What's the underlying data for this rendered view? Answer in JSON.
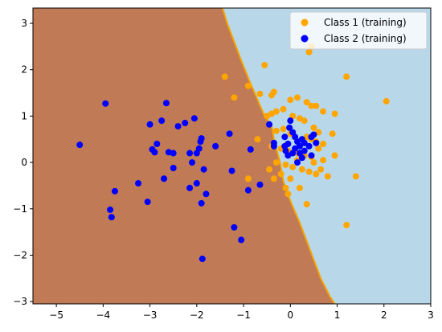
{
  "chart_data": {
    "type": "scatter",
    "title": "",
    "xlabel": "",
    "ylabel": "",
    "xlim": [
      -5.5,
      3.0
    ],
    "ylim": [
      -3.05,
      3.33
    ],
    "xticks": [
      -5,
      -4,
      -3,
      -2,
      -1,
      0,
      1,
      2,
      3
    ],
    "yticks": [
      -3,
      -2,
      -1,
      0,
      1,
      2,
      3
    ],
    "grid": false,
    "legend_position": "top-right",
    "decision_regions": {
      "class1_color": "#C07A56",
      "class2_color": "#B8D8EA",
      "boundary_color": "#F4A300",
      "boundary": [
        [
          -1.45,
          3.33
        ],
        [
          -1.35,
          3.0
        ],
        [
          -1.2,
          2.6
        ],
        [
          -1.05,
          2.2
        ],
        [
          -0.95,
          1.95
        ],
        [
          -0.85,
          1.7
        ],
        [
          -0.7,
          1.35
        ],
        [
          -0.55,
          1.0
        ],
        [
          -0.4,
          0.8
        ],
        [
          -0.35,
          0.5
        ],
        [
          -0.3,
          0.3
        ],
        [
          -0.22,
          0.0
        ],
        [
          -0.15,
          -0.4
        ],
        [
          -0.05,
          -0.7
        ],
        [
          0.05,
          -0.95
        ],
        [
          0.2,
          -1.3
        ],
        [
          0.35,
          -1.7
        ],
        [
          0.5,
          -2.1
        ],
        [
          0.65,
          -2.5
        ],
        [
          0.85,
          -2.9
        ],
        [
          0.95,
          -3.05
        ]
      ]
    },
    "series": [
      {
        "name": "Class 1 (training)",
        "color": "#FFA500",
        "points": [
          [
            -1.4,
            1.85
          ],
          [
            -1.2,
            1.4
          ],
          [
            -0.55,
            2.1
          ],
          [
            0.4,
            2.38
          ],
          [
            0.45,
            2.5
          ],
          [
            1.2,
            1.85
          ],
          [
            2.05,
            1.32
          ],
          [
            -0.9,
            1.65
          ],
          [
            -0.65,
            1.48
          ],
          [
            -0.4,
            1.45
          ],
          [
            -0.35,
            1.52
          ],
          [
            0.0,
            1.35
          ],
          [
            0.15,
            1.4
          ],
          [
            0.35,
            1.3
          ],
          [
            0.45,
            1.22
          ],
          [
            0.55,
            1.22
          ],
          [
            0.7,
            1.1
          ],
          [
            0.95,
            1.05
          ],
          [
            -0.5,
            1.0
          ],
          [
            -0.4,
            1.05
          ],
          [
            -0.3,
            1.1
          ],
          [
            -0.15,
            1.15
          ],
          [
            0.05,
            1.0
          ],
          [
            0.2,
            0.95
          ],
          [
            0.3,
            0.9
          ],
          [
            0.5,
            0.75
          ],
          [
            0.6,
            0.65
          ],
          [
            0.9,
            0.62
          ],
          [
            -0.3,
            0.68
          ],
          [
            -0.15,
            0.72
          ],
          [
            0.0,
            0.62
          ],
          [
            0.1,
            0.55
          ],
          [
            0.35,
            0.55
          ],
          [
            0.45,
            0.5
          ],
          [
            0.55,
            0.45
          ],
          [
            0.7,
            0.4
          ],
          [
            -0.4,
            0.35
          ],
          [
            -0.2,
            0.3
          ],
          [
            -0.05,
            0.25
          ],
          [
            0.15,
            0.2
          ],
          [
            0.3,
            0.15
          ],
          [
            0.45,
            0.12
          ],
          [
            0.6,
            0.3
          ],
          [
            0.7,
            0.05
          ],
          [
            0.95,
            0.15
          ],
          [
            -0.3,
            0.0
          ],
          [
            -0.1,
            -0.05
          ],
          [
            0.05,
            -0.1
          ],
          [
            0.25,
            -0.15
          ],
          [
            0.4,
            -0.2
          ],
          [
            0.55,
            -0.25
          ],
          [
            0.8,
            -0.3
          ],
          [
            -0.45,
            -0.15
          ],
          [
            -0.2,
            -0.25
          ],
          [
            0.0,
            -0.35
          ],
          [
            0.2,
            -0.55
          ],
          [
            -0.35,
            -0.35
          ],
          [
            -0.9,
            -0.35
          ],
          [
            -0.7,
            0.5
          ],
          [
            -0.1,
            -0.55
          ],
          [
            -0.05,
            -0.68
          ],
          [
            0.35,
            -0.9
          ],
          [
            1.4,
            -0.3
          ],
          [
            1.2,
            -1.35
          ],
          [
            0.65,
            -0.15
          ],
          [
            0.5,
            0.0
          ],
          [
            0.15,
            0.05
          ]
        ]
      },
      {
        "name": "Class 2 (training)",
        "color": "#0000FF",
        "points": [
          [
            -4.5,
            0.38
          ],
          [
            -3.95,
            1.27
          ],
          [
            -3.85,
            -1.02
          ],
          [
            -3.82,
            -1.18
          ],
          [
            -3.75,
            -0.62
          ],
          [
            -3.25,
            -0.45
          ],
          [
            -3.05,
            -0.85
          ],
          [
            -3.0,
            0.82
          ],
          [
            -2.95,
            0.28
          ],
          [
            -2.9,
            0.22
          ],
          [
            -2.85,
            0.4
          ],
          [
            -2.75,
            0.9
          ],
          [
            -2.7,
            -0.35
          ],
          [
            -2.65,
            1.28
          ],
          [
            -2.6,
            0.22
          ],
          [
            -2.5,
            0.2
          ],
          [
            -2.5,
            -0.12
          ],
          [
            -2.4,
            0.78
          ],
          [
            -2.25,
            0.85
          ],
          [
            -2.15,
            0.2
          ],
          [
            -2.15,
            -0.55
          ],
          [
            -2.1,
            0.0
          ],
          [
            -2.05,
            0.95
          ],
          [
            -2.0,
            0.2
          ],
          [
            -2.0,
            -0.45
          ],
          [
            -1.95,
            0.3
          ],
          [
            -1.92,
            0.45
          ],
          [
            -1.9,
            0.52
          ],
          [
            -1.9,
            -0.88
          ],
          [
            -1.88,
            -2.08
          ],
          [
            -1.85,
            -0.15
          ],
          [
            -1.8,
            -0.68
          ],
          [
            -1.6,
            0.35
          ],
          [
            -1.3,
            0.62
          ],
          [
            -1.25,
            -0.18
          ],
          [
            -1.2,
            -1.4
          ],
          [
            -1.05,
            -1.67
          ],
          [
            -0.85,
            0.28
          ],
          [
            -0.9,
            -0.6
          ],
          [
            -0.65,
            -0.48
          ],
          [
            -0.45,
            0.82
          ],
          [
            -0.35,
            0.35
          ],
          [
            -0.35,
            0.42
          ],
          [
            -0.1,
            0.25
          ],
          [
            -0.05,
            0.4
          ],
          [
            0.0,
            0.9
          ],
          [
            0.05,
            0.65
          ],
          [
            0.1,
            0.55
          ],
          [
            0.1,
            0.3
          ],
          [
            0.15,
            0.45
          ],
          [
            0.2,
            0.35
          ],
          [
            0.2,
            0.2
          ],
          [
            0.25,
            0.5
          ],
          [
            0.25,
            0.1
          ],
          [
            0.3,
            0.42
          ],
          [
            0.05,
            0.2
          ],
          [
            -0.05,
            0.15
          ],
          [
            -0.12,
            0.35
          ],
          [
            0.15,
            0.0
          ],
          [
            0.3,
            0.25
          ],
          [
            0.4,
            0.35
          ],
          [
            0.45,
            0.55
          ],
          [
            -0.02,
            0.75
          ],
          [
            0.5,
            0.6
          ],
          [
            0.55,
            0.42
          ],
          [
            0.45,
            0.15
          ],
          [
            -0.12,
            0.55
          ]
        ]
      }
    ]
  }
}
